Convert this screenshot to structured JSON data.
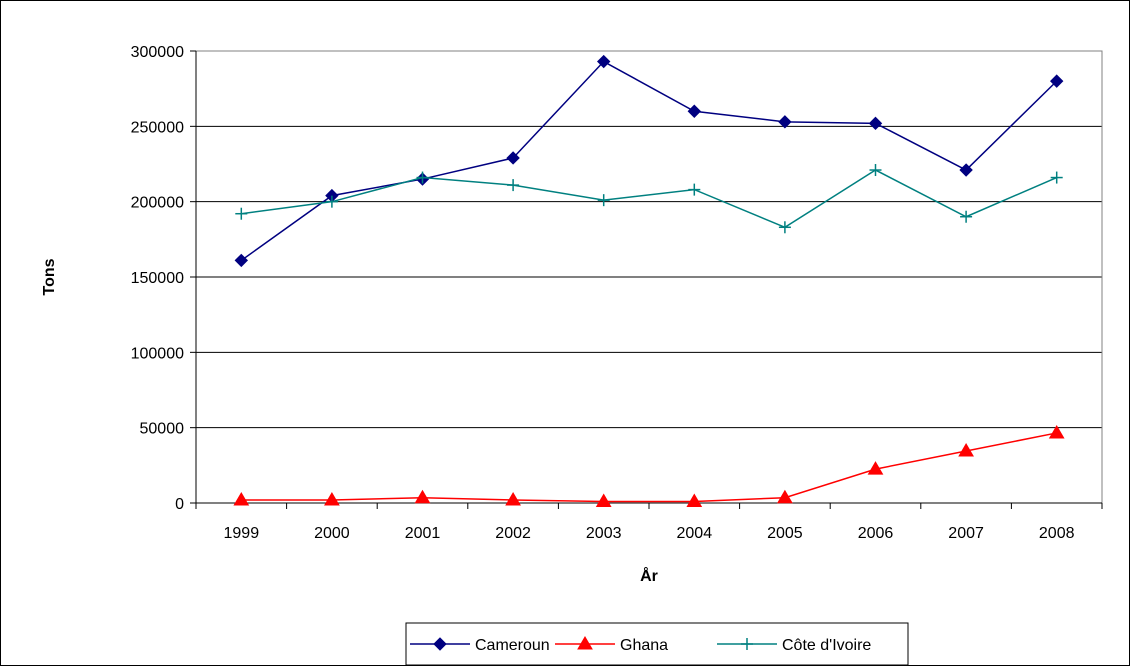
{
  "chart_data": {
    "type": "line",
    "title": "",
    "xlabel": "År",
    "ylabel": "Tons",
    "categories": [
      "1999",
      "2000",
      "2001",
      "2002",
      "2003",
      "2004",
      "2005",
      "2006",
      "2007",
      "2008"
    ],
    "ylim": [
      0,
      300000
    ],
    "yticks": [
      "0",
      "50000",
      "100000",
      "150000",
      "200000",
      "250000",
      "300000"
    ],
    "grid": true,
    "legend_position": "bottom",
    "series": [
      {
        "name": "Cameroun",
        "color": "#000080",
        "marker": "diamond",
        "values": [
          161000,
          204000,
          215000,
          229000,
          293000,
          260000,
          253000,
          252000,
          221000,
          280000
        ]
      },
      {
        "name": "Ghana",
        "color": "#ff0000",
        "marker": "triangle",
        "values": [
          2000,
          2000,
          3500,
          2000,
          1000,
          1000,
          3500,
          22500,
          34500,
          46500
        ]
      },
      {
        "name": "Côte d'Ivoire",
        "color": "#008080",
        "marker": "plus",
        "values": [
          192000,
          200000,
          216000,
          211000,
          201000,
          208000,
          183000,
          221000,
          190000,
          216000
        ]
      }
    ]
  }
}
